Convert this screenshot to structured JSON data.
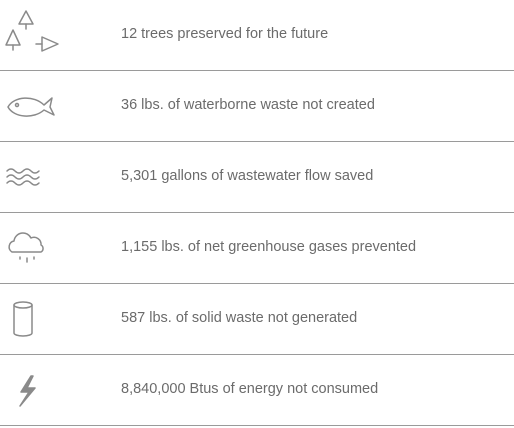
{
  "items": [
    {
      "text": "12 trees preserved for the future"
    },
    {
      "text": "36 lbs. of waterborne waste not created"
    },
    {
      "text": "5,301 gallons of wastewater flow saved"
    },
    {
      "text": "1,155 lbs. of net greenhouse gases prevented"
    },
    {
      "text": "587 lbs. of solid waste not generated"
    },
    {
      "text": "8,840,000 Btus of energy not consumed"
    }
  ]
}
